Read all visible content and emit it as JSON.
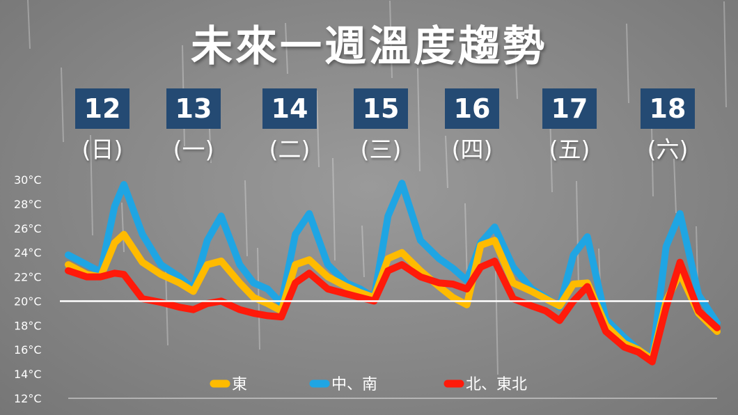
{
  "title": "未來一週溫度趨勢",
  "days": [
    {
      "num": "12",
      "name": "(日)"
    },
    {
      "num": "13",
      "name": "(一)"
    },
    {
      "num": "14",
      "name": "(二)"
    },
    {
      "num": "15",
      "name": "(三)"
    },
    {
      "num": "16",
      "name": "(四)"
    },
    {
      "num": "17",
      "name": "(五)"
    },
    {
      "num": "18",
      "name": "(六)"
    }
  ],
  "chart_data": {
    "type": "line",
    "title": "未來一週溫度趨勢",
    "xlabel": "",
    "ylabel": "",
    "ylim": [
      12,
      30
    ],
    "y_tick_labels": [
      "12°C",
      "14°C",
      "16°C",
      "18°C",
      "20°C",
      "22°C",
      "24°C",
      "26°C",
      "28°C",
      "30°C"
    ],
    "reference_line": {
      "value": 20,
      "color": "#ffffff"
    },
    "x_range": [
      12,
      19
    ],
    "legend_position": "bottom",
    "series": [
      {
        "name": "中、南",
        "color": "#1fa5e3",
        "points": [
          [
            12,
            23.8
          ],
          [
            12.2,
            23
          ],
          [
            12.35,
            22.4
          ],
          [
            12.5,
            27.8
          ],
          [
            12.6,
            29.6
          ],
          [
            12.8,
            25.5
          ],
          [
            13,
            23
          ],
          [
            13.2,
            22
          ],
          [
            13.35,
            21
          ],
          [
            13.5,
            25
          ],
          [
            13.65,
            27
          ],
          [
            13.85,
            23
          ],
          [
            14,
            21.5
          ],
          [
            14.15,
            21
          ],
          [
            14.3,
            19.8
          ],
          [
            14.45,
            25.5
          ],
          [
            14.6,
            27.2
          ],
          [
            14.8,
            23
          ],
          [
            15,
            21.5
          ],
          [
            15.15,
            21
          ],
          [
            15.3,
            20.3
          ],
          [
            15.45,
            27
          ],
          [
            15.6,
            29.7
          ],
          [
            15.8,
            25
          ],
          [
            16,
            23.5
          ],
          [
            16.15,
            22.7
          ],
          [
            16.3,
            21.7
          ],
          [
            16.45,
            24.8
          ],
          [
            16.6,
            26.1
          ],
          [
            16.8,
            22.8
          ],
          [
            17,
            21
          ],
          [
            17.15,
            20.3
          ],
          [
            17.3,
            19.5
          ],
          [
            17.45,
            23.8
          ],
          [
            17.6,
            25.3
          ],
          [
            17.8,
            18.5
          ],
          [
            18,
            17
          ],
          [
            18.15,
            16
          ],
          [
            18.3,
            15.3
          ],
          [
            18.45,
            24.5
          ],
          [
            18.6,
            27.2
          ],
          [
            18.8,
            20.5
          ],
          [
            19,
            18.2
          ]
        ]
      },
      {
        "name": "東",
        "color": "#ffbb00",
        "points": [
          [
            12,
            23
          ],
          [
            12.2,
            22.2
          ],
          [
            12.35,
            22
          ],
          [
            12.5,
            24.8
          ],
          [
            12.6,
            25.5
          ],
          [
            12.8,
            23.2
          ],
          [
            13,
            22.2
          ],
          [
            13.2,
            21.5
          ],
          [
            13.35,
            20.8
          ],
          [
            13.5,
            23
          ],
          [
            13.65,
            23.3
          ],
          [
            13.85,
            21.5
          ],
          [
            14,
            20.3
          ],
          [
            14.15,
            19.8
          ],
          [
            14.3,
            19.2
          ],
          [
            14.45,
            23
          ],
          [
            14.6,
            23.4
          ],
          [
            14.8,
            22
          ],
          [
            15,
            21.2
          ],
          [
            15.15,
            20.7
          ],
          [
            15.3,
            20.3
          ],
          [
            15.45,
            23.5
          ],
          [
            15.6,
            24
          ],
          [
            15.8,
            22.5
          ],
          [
            16,
            21.2
          ],
          [
            16.15,
            20.3
          ],
          [
            16.3,
            19.7
          ],
          [
            16.45,
            24.6
          ],
          [
            16.6,
            25
          ],
          [
            16.8,
            21.5
          ],
          [
            17,
            20.8
          ],
          [
            17.15,
            20.2
          ],
          [
            17.3,
            19.6
          ],
          [
            17.45,
            21.4
          ],
          [
            17.6,
            21.5
          ],
          [
            17.8,
            18
          ],
          [
            18,
            16.5
          ],
          [
            18.15,
            16
          ],
          [
            18.3,
            15.2
          ],
          [
            18.45,
            20
          ],
          [
            18.6,
            22.3
          ],
          [
            18.8,
            19
          ],
          [
            19,
            17.5
          ]
        ]
      },
      {
        "name": "北、東北",
        "color": "#ff1a0a",
        "points": [
          [
            12,
            22.5
          ],
          [
            12.2,
            22
          ],
          [
            12.35,
            22
          ],
          [
            12.5,
            22.3
          ],
          [
            12.6,
            22.2
          ],
          [
            12.8,
            20.2
          ],
          [
            13,
            19.9
          ],
          [
            13.2,
            19.5
          ],
          [
            13.35,
            19.3
          ],
          [
            13.5,
            19.8
          ],
          [
            13.65,
            20
          ],
          [
            13.85,
            19.3
          ],
          [
            14,
            19
          ],
          [
            14.15,
            18.8
          ],
          [
            14.3,
            18.7
          ],
          [
            14.45,
            21.5
          ],
          [
            14.6,
            22.3
          ],
          [
            14.8,
            21
          ],
          [
            15,
            20.6
          ],
          [
            15.15,
            20.3
          ],
          [
            15.3,
            20
          ],
          [
            15.45,
            22.5
          ],
          [
            15.6,
            23
          ],
          [
            15.8,
            22
          ],
          [
            16,
            21.5
          ],
          [
            16.15,
            21.4
          ],
          [
            16.3,
            21
          ],
          [
            16.45,
            22.8
          ],
          [
            16.6,
            23.3
          ],
          [
            16.8,
            20.2
          ],
          [
            17,
            19.6
          ],
          [
            17.15,
            19.2
          ],
          [
            17.3,
            18.4
          ],
          [
            17.45,
            20
          ],
          [
            17.6,
            21.2
          ],
          [
            17.8,
            17.5
          ],
          [
            18,
            16.2
          ],
          [
            18.15,
            15.8
          ],
          [
            18.3,
            15
          ],
          [
            18.45,
            19.5
          ],
          [
            18.6,
            23.2
          ],
          [
            18.8,
            19.2
          ],
          [
            19,
            17.8
          ]
        ]
      }
    ],
    "legend": [
      {
        "label": "東",
        "color": "#ffbb00"
      },
      {
        "label": "中、南",
        "color": "#1fa5e3"
      },
      {
        "label": "北、東北",
        "color": "#ff1a0a"
      }
    ]
  }
}
